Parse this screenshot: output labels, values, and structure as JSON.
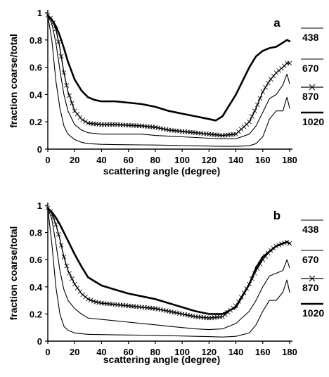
{
  "chart_data": [
    {
      "type": "line",
      "panel_label": "a",
      "xlabel": "scattering angle (degree)",
      "ylabel": "fraction coarse/total",
      "xlim": [
        0,
        180
      ],
      "ylim": [
        0,
        1
      ],
      "xticks": [
        0,
        20,
        40,
        60,
        80,
        100,
        120,
        140,
        160,
        180
      ],
      "yticks": [
        0,
        0.2,
        0.4,
        0.6,
        0.8,
        1
      ],
      "ytick_labels": [
        "0",
        "0.2",
        "0.4",
        "0.6",
        "0.8",
        "1"
      ],
      "legend_position": "right",
      "series": [
        {
          "name": "438",
          "style": "thin",
          "x": [
            0,
            3,
            6,
            9,
            12,
            15,
            20,
            25,
            30,
            40,
            50,
            60,
            70,
            80,
            90,
            100,
            110,
            120,
            130,
            140,
            150,
            155,
            160,
            165,
            170,
            175,
            178,
            180
          ],
          "y": [
            0.98,
            0.8,
            0.5,
            0.3,
            0.17,
            0.11,
            0.07,
            0.05,
            0.04,
            0.035,
            0.033,
            0.032,
            0.031,
            0.03,
            0.028,
            0.026,
            0.024,
            0.022,
            0.02,
            0.02,
            0.025,
            0.04,
            0.09,
            0.22,
            0.28,
            0.28,
            0.38,
            0.3
          ]
        },
        {
          "name": "670",
          "style": "thin",
          "x": [
            0,
            3,
            6,
            9,
            12,
            15,
            20,
            25,
            30,
            40,
            50,
            60,
            70,
            80,
            90,
            100,
            110,
            120,
            130,
            140,
            150,
            155,
            160,
            165,
            170,
            175,
            178,
            180
          ],
          "y": [
            0.98,
            0.92,
            0.78,
            0.58,
            0.4,
            0.28,
            0.18,
            0.14,
            0.12,
            0.11,
            0.11,
            0.11,
            0.11,
            0.1,
            0.095,
            0.09,
            0.085,
            0.08,
            0.075,
            0.075,
            0.11,
            0.17,
            0.27,
            0.37,
            0.4,
            0.47,
            0.55,
            0.48
          ]
        },
        {
          "name": "870",
          "style": "marker",
          "x": [
            0,
            3,
            6,
            9,
            12,
            15,
            20,
            25,
            30,
            40,
            50,
            60,
            70,
            80,
            90,
            100,
            110,
            120,
            130,
            140,
            150,
            155,
            160,
            165,
            170,
            175,
            178,
            180
          ],
          "y": [
            0.98,
            0.95,
            0.88,
            0.74,
            0.56,
            0.42,
            0.28,
            0.22,
            0.19,
            0.18,
            0.18,
            0.175,
            0.17,
            0.16,
            0.14,
            0.13,
            0.12,
            0.11,
            0.1,
            0.11,
            0.2,
            0.3,
            0.42,
            0.5,
            0.56,
            0.6,
            0.63,
            0.63
          ]
        },
        {
          "name": "1020",
          "style": "thick",
          "x": [
            0,
            3,
            6,
            9,
            12,
            15,
            20,
            25,
            30,
            35,
            40,
            50,
            60,
            70,
            80,
            90,
            100,
            110,
            120,
            125,
            130,
            140,
            150,
            155,
            160,
            165,
            170,
            175,
            178,
            180
          ],
          "y": [
            0.98,
            0.95,
            0.9,
            0.83,
            0.74,
            0.64,
            0.51,
            0.43,
            0.38,
            0.36,
            0.35,
            0.35,
            0.34,
            0.33,
            0.31,
            0.28,
            0.26,
            0.24,
            0.22,
            0.21,
            0.24,
            0.4,
            0.6,
            0.68,
            0.72,
            0.74,
            0.75,
            0.78,
            0.8,
            0.79
          ]
        }
      ]
    },
    {
      "type": "line",
      "panel_label": "b",
      "xlabel": "scattering angle (degree)",
      "ylabel": "fraction coarse/total",
      "xlim": [
        0,
        180
      ],
      "ylim": [
        0,
        1
      ],
      "xticks": [
        0,
        20,
        40,
        60,
        80,
        100,
        120,
        140,
        160,
        180
      ],
      "yticks": [
        0,
        0.2,
        0.4,
        0.6,
        0.8,
        1
      ],
      "ytick_labels": [
        "0",
        "0.2",
        "0.4",
        "0.6",
        "0.8",
        "1"
      ],
      "legend_position": "right",
      "series": [
        {
          "name": "438",
          "style": "thin",
          "x": [
            0,
            3,
            6,
            9,
            12,
            15,
            20,
            25,
            30,
            40,
            50,
            60,
            70,
            80,
            90,
            100,
            110,
            120,
            130,
            140,
            150,
            155,
            160,
            165,
            170,
            175,
            178,
            180
          ],
          "y": [
            0.98,
            0.72,
            0.4,
            0.2,
            0.11,
            0.08,
            0.06,
            0.055,
            0.05,
            0.048,
            0.046,
            0.045,
            0.044,
            0.042,
            0.04,
            0.038,
            0.035,
            0.033,
            0.03,
            0.035,
            0.06,
            0.12,
            0.22,
            0.3,
            0.3,
            0.36,
            0.45,
            0.36
          ]
        },
        {
          "name": "670",
          "style": "thin",
          "x": [
            0,
            3,
            6,
            9,
            12,
            15,
            20,
            25,
            30,
            40,
            50,
            60,
            70,
            80,
            90,
            100,
            110,
            120,
            130,
            140,
            150,
            155,
            160,
            165,
            170,
            175,
            178,
            180
          ],
          "y": [
            0.98,
            0.9,
            0.72,
            0.52,
            0.38,
            0.3,
            0.24,
            0.2,
            0.17,
            0.16,
            0.15,
            0.14,
            0.13,
            0.12,
            0.11,
            0.1,
            0.09,
            0.085,
            0.09,
            0.13,
            0.22,
            0.3,
            0.4,
            0.48,
            0.5,
            0.52,
            0.6,
            0.54
          ]
        },
        {
          "name": "870",
          "style": "marker",
          "x": [
            0,
            3,
            6,
            9,
            12,
            15,
            20,
            25,
            30,
            35,
            40,
            50,
            60,
            70,
            80,
            90,
            100,
            110,
            120,
            130,
            140,
            150,
            155,
            160,
            165,
            170,
            175,
            178,
            180
          ],
          "y": [
            0.98,
            0.94,
            0.86,
            0.75,
            0.62,
            0.52,
            0.42,
            0.35,
            0.31,
            0.29,
            0.28,
            0.27,
            0.26,
            0.25,
            0.24,
            0.22,
            0.2,
            0.18,
            0.17,
            0.18,
            0.26,
            0.42,
            0.52,
            0.6,
            0.66,
            0.7,
            0.72,
            0.73,
            0.72
          ]
        },
        {
          "name": "1020",
          "style": "thick",
          "x": [
            0,
            3,
            6,
            9,
            12,
            15,
            20,
            25,
            30,
            40,
            50,
            60,
            70,
            80,
            90,
            100,
            110,
            120,
            130,
            140,
            150,
            155,
            160,
            165,
            170,
            175,
            178,
            180
          ],
          "y": [
            0.98,
            0.95,
            0.91,
            0.86,
            0.8,
            0.74,
            0.64,
            0.55,
            0.47,
            0.41,
            0.38,
            0.35,
            0.33,
            0.31,
            0.28,
            0.25,
            0.22,
            0.2,
            0.2,
            0.25,
            0.42,
            0.54,
            0.62,
            0.66,
            0.7,
            0.72,
            0.73,
            0.72
          ]
        }
      ]
    }
  ]
}
